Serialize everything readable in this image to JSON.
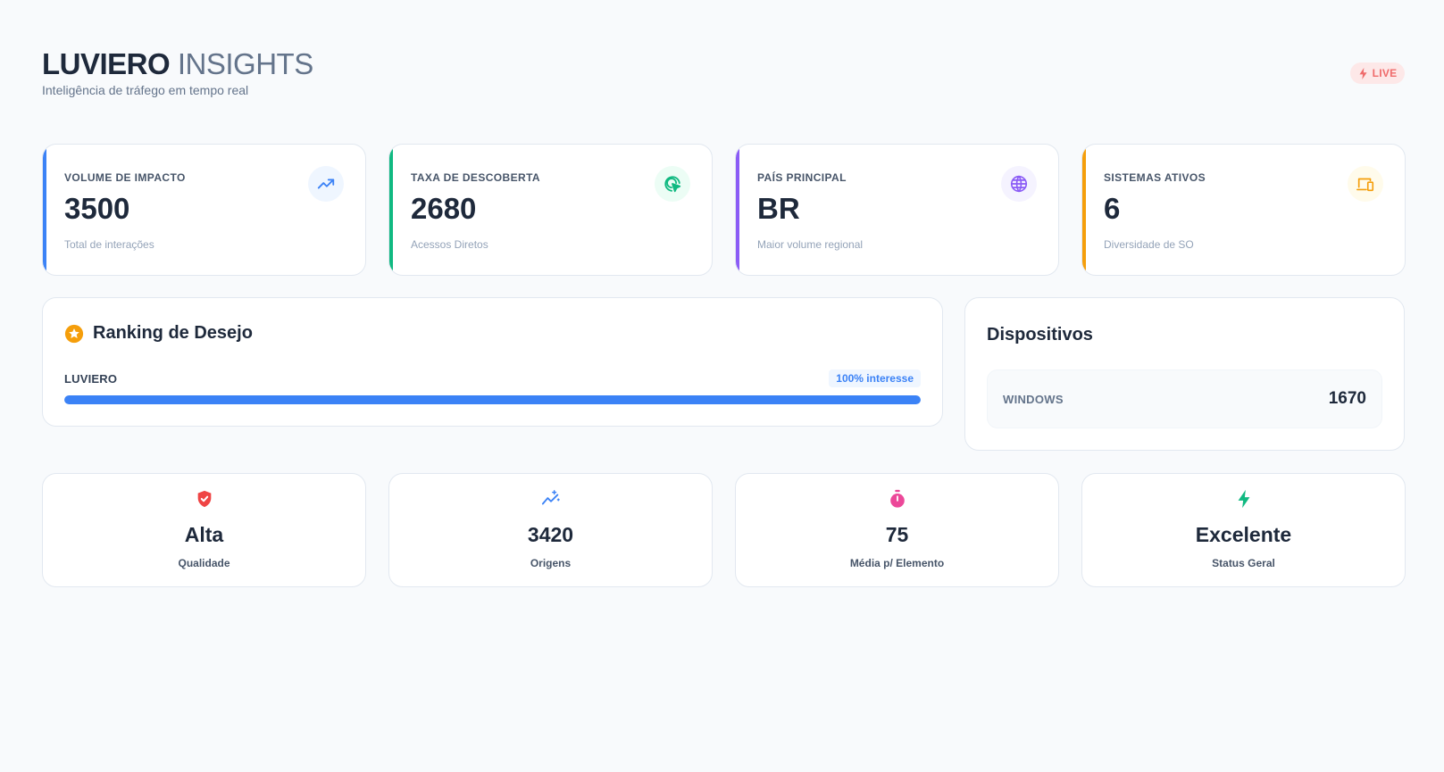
{
  "header": {
    "brand_strong": "LUVIERO",
    "brand_light": "INSIGHTS",
    "subtitle": "Inteligência de tráfego em tempo real",
    "live_label": "LIVE"
  },
  "kpis": [
    {
      "title": "VOLUME DE IMPACTO",
      "value": "3500",
      "caption": "Total de interações",
      "icon": "trending-up-icon",
      "color": "#3b82f6",
      "icon_bg": "#eff6ff"
    },
    {
      "title": "TAXA DE DESCOBERTA",
      "value": "2680",
      "caption": "Acessos Diretos",
      "icon": "target-cursor-icon",
      "color": "#10b981",
      "icon_bg": "#ecfdf5"
    },
    {
      "title": "PAÍS PRINCIPAL",
      "value": "BR",
      "caption": "Maior volume regional",
      "icon": "globe-icon",
      "color": "#8b5cf6",
      "icon_bg": "#f5f3ff"
    },
    {
      "title": "SISTEMAS ATIVOS",
      "value": "6",
      "caption": "Diversidade de SO",
      "icon": "devices-icon",
      "color": "#f59e0b",
      "icon_bg": "#fffbeb"
    }
  ],
  "ranking": {
    "title": "Ranking de Desejo",
    "icon": "star-icon",
    "items": [
      {
        "label": "LUVIERO",
        "badge": "100% interesse",
        "percent": 100
      }
    ]
  },
  "devices": {
    "title": "Dispositivos",
    "items": [
      {
        "name": "WINDOWS",
        "count": "1670"
      }
    ]
  },
  "stats": [
    {
      "value": "Alta",
      "label": "Qualidade",
      "icon": "shield-check-icon",
      "color": "#ef4444"
    },
    {
      "value": "3420",
      "label": "Origens",
      "icon": "chart-sparkle-icon",
      "color": "#3b82f6"
    },
    {
      "value": "75",
      "label": "Média p/ Elemento",
      "icon": "stopwatch-icon",
      "color": "#ec4899"
    },
    {
      "value": "Excelente",
      "label": "Status Geral",
      "icon": "bolt-icon",
      "color": "#10b981"
    }
  ],
  "colors": {
    "accent_blue": "#3b82f6",
    "live_red": "#ef6b6b",
    "star_orange": "#f59e0b"
  }
}
